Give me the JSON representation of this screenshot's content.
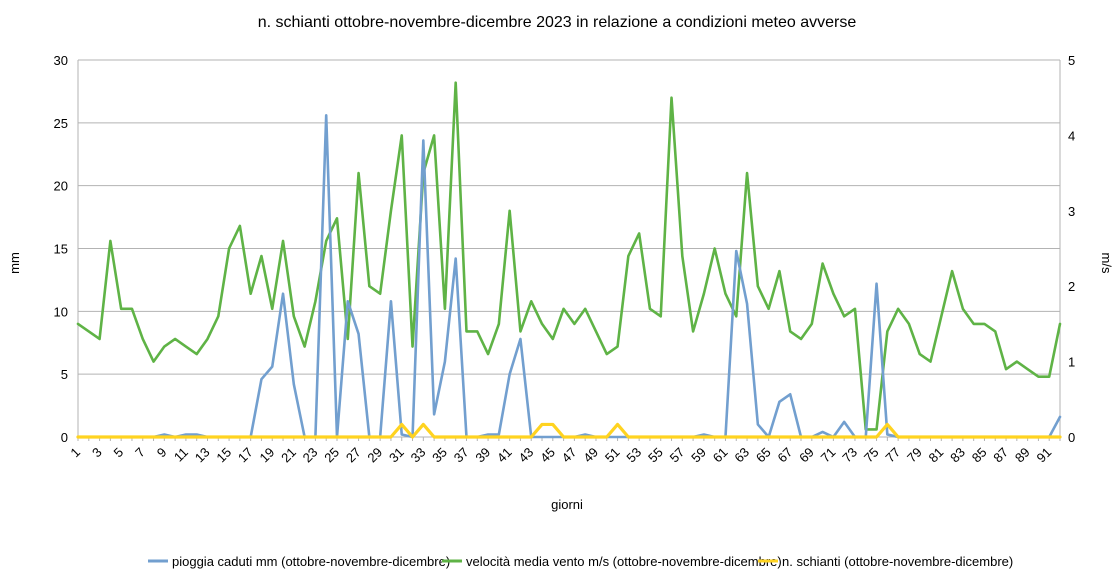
{
  "chart_data": {
    "type": "line",
    "title": "n. schianti ottobre-novembre-dicembre 2023 in relazione a condizioni meteo avverse",
    "xlabel": "giorni",
    "ylabel_left": "mm",
    "ylabel_right": "m/s",
    "ylim_left": [
      0,
      30
    ],
    "ylim_right": [
      0,
      5
    ],
    "yticks_left": [
      "0",
      "5",
      "10",
      "15",
      "20",
      "25",
      "30"
    ],
    "yticks_right": [
      "0",
      "1",
      "2",
      "3",
      "4",
      "5"
    ],
    "grid": true,
    "legend_position": "bottom",
    "x": [
      1,
      2,
      3,
      4,
      5,
      6,
      7,
      8,
      9,
      10,
      11,
      12,
      13,
      14,
      15,
      16,
      17,
      18,
      19,
      20,
      21,
      22,
      23,
      24,
      25,
      26,
      27,
      28,
      29,
      30,
      31,
      32,
      33,
      34,
      35,
      36,
      37,
      38,
      39,
      40,
      41,
      42,
      43,
      44,
      45,
      46,
      47,
      48,
      49,
      50,
      51,
      52,
      53,
      54,
      55,
      56,
      57,
      58,
      59,
      60,
      61,
      62,
      63,
      64,
      65,
      66,
      67,
      68,
      69,
      70,
      71,
      72,
      73,
      74,
      75,
      76,
      77,
      78,
      79,
      80,
      81,
      82,
      83,
      84,
      85,
      86,
      87,
      88,
      89,
      90,
      91,
      92
    ],
    "x_tick_labels": [
      "1",
      "3",
      "5",
      "7",
      "9",
      "11",
      "13",
      "15",
      "17",
      "19",
      "21",
      "23",
      "25",
      "27",
      "29",
      "31",
      "33",
      "35",
      "37",
      "39",
      "41",
      "43",
      "45",
      "47",
      "49",
      "51",
      "53",
      "55",
      "57",
      "59",
      "61",
      "63",
      "65",
      "67",
      "69",
      "71",
      "73",
      "75",
      "77",
      "79",
      "81",
      "83",
      "85",
      "87",
      "89",
      "91"
    ],
    "series": [
      {
        "name": "pioggia caduti mm (ottobre-novembre-dicembre)",
        "axis": "left",
        "color": "#729fcf",
        "values": [
          0,
          0,
          0,
          0,
          0,
          0,
          0,
          0,
          0.2,
          0,
          0.2,
          0.2,
          0,
          0,
          0,
          0,
          0,
          4.6,
          5.6,
          11.4,
          4.2,
          0,
          0,
          25.6,
          0,
          10.8,
          8.2,
          0,
          0,
          10.8,
          0.2,
          0,
          23.6,
          1.8,
          6,
          14.2,
          0,
          0,
          0.2,
          0.2,
          5,
          7.8,
          0,
          0,
          0,
          0,
          0,
          0.2,
          0,
          0,
          0,
          0,
          0,
          0,
          0,
          0,
          0,
          0,
          0.2,
          0,
          0,
          14.8,
          10.6,
          1,
          0,
          2.8,
          3.4,
          0,
          0,
          0.4,
          0,
          1.2,
          0,
          0,
          12.2,
          0.2,
          0,
          0,
          0,
          0,
          0,
          0,
          0,
          0,
          0,
          0,
          0,
          0,
          0,
          0,
          0,
          1.6
        ]
      },
      {
        "name": "velocità media vento m/s (ottobre-novembre-dicembre)",
        "axis": "right",
        "color": "#5fb346",
        "values": [
          1.5,
          1.4,
          1.3,
          2.6,
          1.7,
          1.7,
          1.3,
          1.0,
          1.2,
          1.3,
          1.2,
          1.1,
          1.3,
          1.6,
          2.5,
          2.8,
          1.9,
          2.4,
          1.7,
          2.6,
          1.6,
          1.2,
          1.8,
          2.6,
          2.9,
          1.3,
          3.5,
          2.0,
          1.9,
          3.0,
          4.0,
          1.2,
          3.5,
          4.0,
          1.7,
          4.7,
          1.4,
          1.4,
          1.1,
          1.5,
          3.0,
          1.4,
          1.8,
          1.5,
          1.3,
          1.7,
          1.5,
          1.7,
          1.4,
          1.1,
          1.2,
          2.4,
          2.7,
          1.7,
          1.6,
          4.5,
          2.4,
          1.4,
          1.9,
          2.5,
          1.9,
          1.6,
          3.5,
          2.0,
          1.7,
          2.2,
          1.4,
          1.3,
          1.5,
          2.3,
          1.9,
          1.6,
          1.7,
          0.1,
          0.1,
          1.4,
          1.7,
          1.5,
          1.1,
          1.0,
          1.6,
          2.2,
          1.7,
          1.5,
          1.5,
          1.4,
          0.9,
          1.0,
          0.9,
          0.8,
          0.8,
          1.5
        ]
      },
      {
        "name": "n. schianti (ottobre-novembre-dicembre)",
        "axis": "left",
        "color": "#ffd320",
        "values": [
          0,
          0,
          0,
          0,
          0,
          0,
          0,
          0,
          0,
          0,
          0,
          0,
          0,
          0,
          0,
          0,
          0,
          0,
          0,
          0,
          0,
          0,
          0,
          0,
          0,
          0,
          0,
          0,
          0,
          0,
          1,
          0,
          1,
          0,
          0,
          0,
          0,
          0,
          0,
          0,
          0,
          0,
          0,
          1,
          1,
          0,
          0,
          0,
          0,
          0,
          1,
          0,
          0,
          0,
          0,
          0,
          0,
          0,
          0,
          0,
          0,
          0,
          0,
          0,
          0,
          0,
          0,
          0,
          0,
          0,
          0,
          0,
          0,
          0,
          0,
          1,
          0,
          0,
          0,
          0,
          0,
          0,
          0,
          0,
          0,
          0,
          0,
          0,
          0,
          0,
          0,
          0
        ]
      }
    ]
  }
}
